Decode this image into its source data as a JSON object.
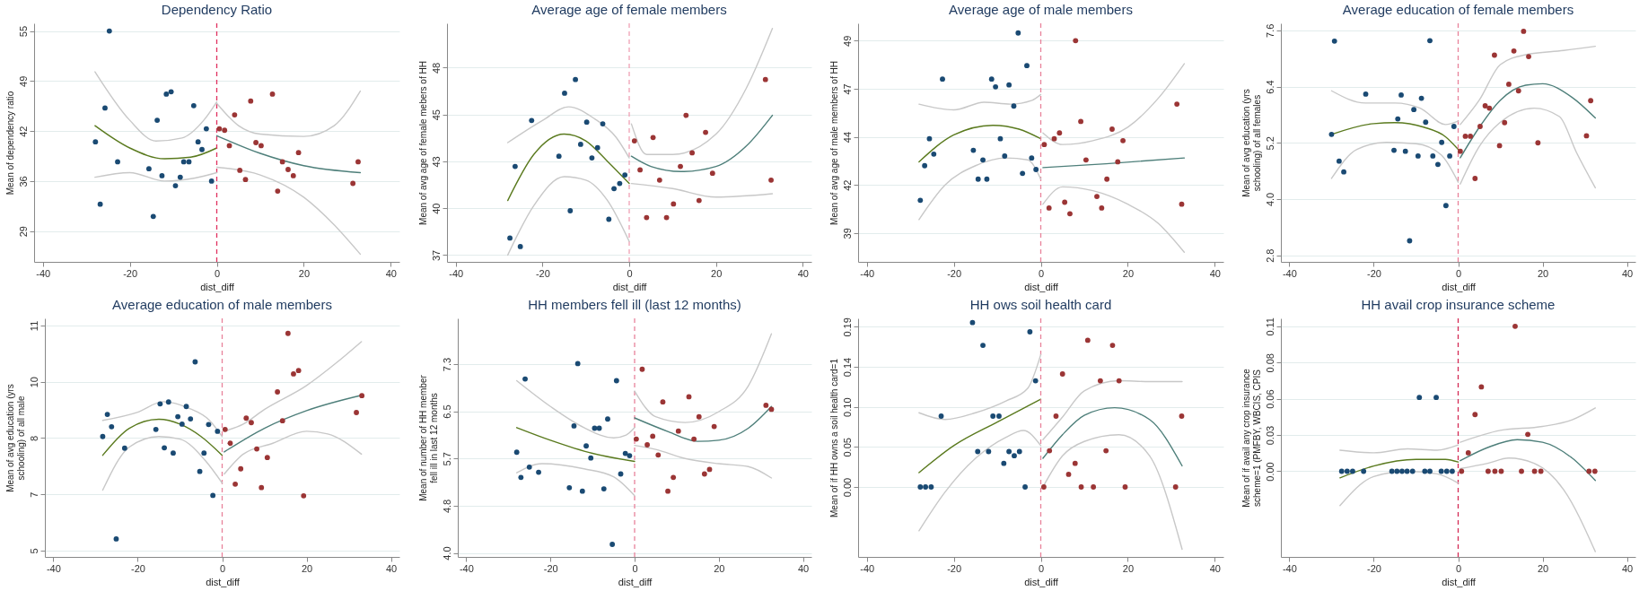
{
  "chart_data": [
    {
      "type": "scatter",
      "title": "Dependency Ratio",
      "xlabel": "dist_diff",
      "ylabel": "Mean of dependency ratio",
      "xlim": [
        -42,
        42
      ],
      "xticks": [
        -40,
        -20,
        0,
        20,
        40
      ],
      "ylim": [
        25,
        56
      ],
      "yticks": [
        29,
        {
          "value": 35.5,
          "label": "36"
        },
        42,
        {
          "value": 48.5,
          "label": "49"
        },
        55
      ],
      "grid": "y",
      "ref_lines": [
        {
          "axis": "x",
          "value": 0,
          "color": "#e0305f",
          "line_style": "dashed"
        }
      ],
      "series": [
        {
          "type": "scatter",
          "marker": "circle",
          "color": "#1a4a73",
          "x": [
            -27.9,
            -26.8,
            -25.7,
            -24.7,
            -22.8,
            -15.6,
            -14.6,
            -13.7,
            -12.6,
            -11.6,
            -10.5,
            -9.5,
            -8.4,
            -7.6,
            -6.4,
            -5.3,
            -4.3,
            -3.4,
            -2.4,
            -1.2
          ],
          "values": [
            40.6,
            32.5,
            45.0,
            55,
            38.0,
            37.1,
            30.9,
            43.4,
            36.2,
            46.8,
            47.1,
            34.9,
            36.0,
            38.0,
            38.0,
            45.3,
            40.6,
            39.6,
            42.3,
            35.5
          ]
        },
        {
          "type": "scatter",
          "marker": "circle",
          "color": "#9b3535",
          "x": [
            0.6,
            1.8,
            2.9,
            4.1,
            5.3,
            6.6,
            7.8,
            9.0,
            10.2,
            12.8,
            14.0,
            15.1,
            16.4,
            17.6,
            18.8,
            31.3,
            32.5
          ],
          "values": [
            42.3,
            42.1,
            40.1,
            44.1,
            36.9,
            35.7,
            45.9,
            40.5,
            40.1,
            46.8,
            34.2,
            38.0,
            37.0,
            36.2,
            39.2,
            35.2,
            38.0
          ]
        },
        {
          "type": "line",
          "color": "#5a7a1e",
          "x": [
            -28,
            -20,
            -12,
            -6,
            0
          ],
          "values": [
            42.7,
            39.8,
            38.4,
            38.6,
            39.8
          ]
        },
        {
          "type": "line",
          "color": "#c8c8c8",
          "x": [
            -28,
            -20,
            -14,
            -8,
            -3,
            0
          ],
          "values": [
            49.7,
            43.4,
            40.7,
            41.1,
            43.4,
            45.8
          ]
        },
        {
          "type": "line",
          "color": "#c8c8c8",
          "x": [
            -28,
            -20,
            -12,
            -5,
            0
          ],
          "values": [
            36.0,
            36.6,
            35.5,
            35.9,
            36.6
          ]
        },
        {
          "type": "line",
          "color": "#4e7f7a",
          "x": [
            0,
            10,
            20,
            33
          ],
          "values": [
            41.4,
            39.1,
            37.5,
            36.6
          ]
        },
        {
          "type": "line",
          "color": "#c8c8c8",
          "x": [
            0,
            5,
            10,
            20,
            27,
            33
          ],
          "values": [
            45.6,
            42.7,
            41.6,
            41.3,
            42.7,
            47.2
          ]
        },
        {
          "type": "line",
          "color": "#c8c8c8",
          "x": [
            0,
            10,
            20,
            27,
            33
          ],
          "values": [
            37.3,
            36.3,
            33.4,
            29.8,
            26.0
          ]
        }
      ]
    },
    {
      "type": "scatter",
      "title": "Average age of female members",
      "xlabel": "dist_diff",
      "ylabel": "Mean of avg  age of female mebers of HH",
      "xlim": [
        -42,
        42
      ],
      "xticks": [
        -40,
        -20,
        0,
        20,
        40
      ],
      "ylim": [
        36.6,
        50.6
      ],
      "yticks": [
        37,
        {
          "value": 39.75,
          "label": "40"
        },
        {
          "value": 42.5,
          "label": "43"
        },
        {
          "value": 45.25,
          "label": "45"
        },
        48
      ],
      "grid": "y",
      "ref_lines": [
        {
          "axis": "x",
          "value": 0,
          "color": "#f0a0b4",
          "line_style": "dashed"
        }
      ],
      "series": [
        {
          "type": "scatter",
          "marker": "circle",
          "color": "#1a4a73",
          "x": [
            -27.5,
            -26.3,
            -25.1,
            -22.5,
            -16.2,
            -14.9,
            -13.6,
            -12.4,
            -11.2,
            -9.8,
            -8.6,
            -7.3,
            -6.1,
            -4.7,
            -3.5,
            -2.2,
            -1.0
          ],
          "values": [
            38.0,
            42.2,
            37.5,
            44.9,
            42.8,
            46.5,
            39.6,
            47.3,
            43.5,
            44.8,
            42.7,
            43.3,
            44.7,
            39.1,
            40.9,
            41.2,
            41.7
          ]
        },
        {
          "type": "scatter",
          "marker": "circle",
          "color": "#9b3535",
          "x": [
            1.2,
            2.5,
            4.0,
            5.5,
            7.0,
            8.6,
            10.2,
            11.8,
            13.1,
            14.5,
            16.1,
            17.6,
            19.2,
            31.4,
            32.7
          ],
          "values": [
            43.7,
            42.0,
            39.2,
            43.9,
            41.4,
            39.2,
            40.0,
            42.2,
            45.2,
            43.0,
            40.2,
            44.2,
            41.8,
            47.3,
            41.4
          ]
        },
        {
          "type": "line",
          "color": "#5a7a1e",
          "x": [
            -28,
            -22,
            -15,
            -10,
            -5,
            0
          ],
          "values": [
            40.2,
            42.9,
            44.1,
            43.7,
            42.5,
            41.2
          ]
        },
        {
          "type": "line",
          "color": "#c8c8c8",
          "x": [
            -28,
            -20,
            -14,
            -8,
            -3,
            0
          ],
          "values": [
            43.6,
            44.9,
            45.7,
            45.0,
            43.9,
            42.7
          ]
        },
        {
          "type": "line",
          "color": "#c8c8c8",
          "x": [
            -28,
            -22,
            -15,
            -10,
            -5,
            0
          ],
          "values": [
            37.0,
            39.9,
            41.6,
            41.4,
            40.2,
            37.8
          ]
        },
        {
          "type": "line",
          "color": "#4e7f7a",
          "x": [
            0.5,
            5,
            12,
            20,
            27,
            33
          ],
          "values": [
            42.8,
            42.2,
            41.9,
            42.2,
            43.4,
            45.2
          ]
        },
        {
          "type": "line",
          "color": "#c8c8c8",
          "x": [
            0.5,
            4,
            10,
            20,
            27,
            33
          ],
          "values": [
            44.7,
            42.9,
            42.9,
            44.1,
            46.8,
            50.3
          ]
        },
        {
          "type": "line",
          "color": "#c8c8c8",
          "x": [
            0.5,
            10,
            20,
            33
          ],
          "values": [
            41.2,
            40.9,
            40.4,
            40.6
          ]
        }
      ]
    },
    {
      "type": "scatter",
      "title": "Average age of male members",
      "xlabel": "dist_diff",
      "ylabel": "Mean of avg age of male members of HH",
      "xlim": [
        -42,
        42
      ],
      "xticks": [
        -40,
        -20,
        0,
        20,
        40
      ],
      "ylim": [
        37.5,
        49.9
      ],
      "yticks": [
        39,
        {
          "value": 41.5,
          "label": "42"
        },
        44,
        {
          "value": 46.5,
          "label": "47"
        },
        49
      ],
      "grid": "y",
      "ref_lines": [
        {
          "axis": "x",
          "value": 0,
          "color": "#e8829a",
          "line_style": "dashed"
        }
      ],
      "series": [
        {
          "type": "scatter",
          "marker": "circle",
          "color": "#1a4a73",
          "x": [
            -27.7,
            -26.7,
            -25.6,
            -24.6,
            -22.6,
            -15.5,
            -14.4,
            -13.3,
            -12.4,
            -11.3,
            -10.4,
            -9.3,
            -8.3,
            -7.3,
            -6.2,
            -5.2,
            -4.2,
            -3.2,
            -2.1,
            -1.1
          ],
          "values": [
            40.7,
            42.5,
            43.9,
            43.1,
            47.0,
            43.3,
            41.8,
            42.8,
            41.8,
            47.0,
            46.6,
            43.9,
            43.0,
            46.7,
            45.6,
            49.4,
            42.1,
            47.7,
            42.9,
            42.3
          ]
        },
        {
          "type": "scatter",
          "marker": "circle",
          "color": "#9b3535",
          "x": [
            0.8,
            1.9,
            3.1,
            4.3,
            5.5,
            6.7,
            8.0,
            9.2,
            10.4,
            12.9,
            14.0,
            15.2,
            16.4,
            17.7,
            18.9,
            31.3,
            32.4
          ],
          "values": [
            43.6,
            40.3,
            43.9,
            44.2,
            40.6,
            40.0,
            49.0,
            44.8,
            42.8,
            40.9,
            40.3,
            41.8,
            44.4,
            42.7,
            43.8,
            45.7,
            40.5
          ]
        },
        {
          "type": "line",
          "color": "#5a7a1e",
          "x": [
            -28,
            -20,
            -11,
            -5,
            0
          ],
          "values": [
            42.7,
            44.1,
            44.6,
            44.4,
            43.9
          ]
        },
        {
          "type": "line",
          "color": "#c8c8c8",
          "x": [
            -28,
            -20,
            -13,
            -7,
            -2,
            0
          ],
          "values": [
            45.7,
            45.4,
            45.8,
            45.7,
            45.9,
            46.2
          ]
        },
        {
          "type": "line",
          "color": "#c8c8c8",
          "x": [
            -28,
            -22,
            -15,
            -8,
            -3,
            0
          ],
          "values": [
            39.7,
            41.5,
            42.5,
            42.9,
            42.8,
            41.8
          ]
        },
        {
          "type": "line",
          "color": "#4e7f7a",
          "x": [
            0.5,
            15,
            33
          ],
          "values": [
            42.4,
            42.6,
            42.9
          ]
        },
        {
          "type": "line",
          "color": "#c8c8c8",
          "x": [
            0.5,
            5,
            12,
            20,
            27,
            33
          ],
          "values": [
            44.2,
            43.6,
            43.8,
            44.5,
            46.0,
            47.8
          ]
        },
        {
          "type": "line",
          "color": "#c8c8c8",
          "x": [
            0.5,
            5,
            12,
            20,
            27,
            33
          ],
          "values": [
            40.5,
            41.4,
            41.2,
            40.5,
            39.5,
            38.0
          ]
        }
      ]
    },
    {
      "type": "scatter",
      "title": "Average education of female members",
      "xlabel": "dist_diff",
      "ylabel": "Mean of avg education (yrs schooling) of all females",
      "xlim": [
        -42,
        42
      ],
      "xticks": [
        -40,
        -20,
        0,
        20,
        40
      ],
      "ylim": [
        2.66,
        7.75
      ],
      "yticks": [
        2.8,
        {
          "value": 4,
          "label": "4.0"
        },
        5.2,
        6.4,
        7.6
      ],
      "grid": "y",
      "ref_lines": [
        {
          "axis": "x",
          "value": 0,
          "color": "#e8829a",
          "line_style": "dashed"
        }
      ],
      "series": [
        {
          "type": "scatter",
          "marker": "circle",
          "color": "#1a4a73",
          "x": [
            -29.3,
            -30.0,
            -28.2,
            -27.1,
            -21.9,
            -15.2,
            -14.3,
            -13.5,
            -12.5,
            -11.5,
            -10.5,
            -9.5,
            -8.7,
            -7.7,
            -6.7,
            -6.0,
            -4.8,
            -3.9,
            -2.9,
            -2.0,
            -1.0
          ],
          "values": [
            7.37,
            5.38,
            4.81,
            4.58,
            6.24,
            5.04,
            5.71,
            6.22,
            5.02,
            3.11,
            5.91,
            4.92,
            6.15,
            5.64,
            7.38,
            4.92,
            4.74,
            5.21,
            3.86,
            4.92,
            5.55
          ]
        },
        {
          "type": "scatter",
          "marker": "circle",
          "color": "#9b3535",
          "x": [
            0.5,
            1.7,
            2.9,
            4.0,
            5.2,
            6.4,
            7.4,
            8.6,
            9.8,
            11.0,
            12.0,
            13.2,
            14.3,
            15.5,
            16.7,
            18.9,
            30.4,
            31.4
          ],
          "values": [
            5.02,
            5.34,
            5.34,
            4.44,
            5.55,
            5.99,
            5.94,
            7.07,
            5.14,
            5.63,
            6.45,
            7.16,
            6.31,
            7.58,
            7.04,
            5.2,
            5.35,
            6.1
          ]
        },
        {
          "type": "line",
          "color": "#5a7a1e",
          "x": [
            -30,
            -20,
            -15,
            -8,
            -3,
            0
          ],
          "values": [
            5.38,
            5.61,
            5.63,
            5.53,
            5.33,
            5.06
          ]
        },
        {
          "type": "line",
          "color": "#c8c8c8",
          "x": [
            -30,
            -22,
            -15,
            -9,
            -3,
            0
          ],
          "values": [
            6.31,
            6.05,
            6.05,
            5.94,
            5.59,
            5.66
          ]
        },
        {
          "type": "line",
          "color": "#c8c8c8",
          "x": [
            -30,
            -24,
            -17,
            -10,
            -4,
            0
          ],
          "values": [
            4.44,
            5.06,
            5.21,
            5.18,
            4.94,
            4.36
          ]
        },
        {
          "type": "line",
          "color": "#4e7f7a",
          "x": [
            0.5,
            5,
            10,
            16,
            20,
            27,
            32.5
          ],
          "values": [
            4.88,
            5.53,
            6.11,
            6.43,
            6.46,
            6.17,
            5.73
          ]
        },
        {
          "type": "line",
          "color": "#c8c8c8",
          "x": [
            0.5,
            5,
            10,
            16,
            25,
            32.5
          ],
          "values": [
            5.59,
            6.11,
            6.87,
            7.08,
            7.17,
            7.26
          ]
        },
        {
          "type": "line",
          "color": "#c8c8c8",
          "x": [
            0.5,
            5,
            10,
            18,
            24,
            28,
            32.5
          ],
          "values": [
            4.32,
            5.12,
            5.64,
            5.94,
            5.76,
            5.0,
            4.24
          ]
        }
      ]
    },
    {
      "type": "scatter",
      "title": "Average education of male members",
      "xlabel": "dist_diff",
      "ylabel": "Mean of avg education (yrs schooling) of all male",
      "xlim": [
        -42,
        42
      ],
      "xticks": [
        -40,
        -20,
        0,
        20,
        40
      ],
      "ylim": [
        4.83,
        11.19
      ],
      "yticks": [
        5,
        {
          "value": 6.5,
          "label": "7"
        },
        8,
        {
          "value": 9.5,
          "label": "10"
        },
        11
      ],
      "grid": "y",
      "ref_lines": [
        {
          "axis": "x",
          "value": 0,
          "color": "#e8829a",
          "line_style": "dashed"
        }
      ],
      "series": [
        {
          "type": "scatter",
          "marker": "circle",
          "color": "#1a4a73",
          "x": [
            -28.3,
            -27.2,
            -26.2,
            -25.1,
            -23.1,
            -15.7,
            -14.7,
            -13.7,
            -12.7,
            -11.6,
            -10.5,
            -9.5,
            -8.5,
            -7.5,
            -6.4,
            -5.3,
            -4.3,
            -3.2,
            -2.2,
            -1.1
          ],
          "values": [
            8.04,
            8.63,
            8.3,
            5.31,
            7.73,
            8.23,
            8.91,
            7.74,
            8.96,
            7.6,
            8.57,
            8.37,
            8.84,
            8.51,
            10.03,
            7.11,
            7.6,
            8.36,
            6.47,
            8.18
          ]
        },
        {
          "type": "scatter",
          "marker": "circle",
          "color": "#9b3535",
          "x": [
            0.7,
            1.9,
            3.1,
            4.4,
            5.7,
            6.9,
            8.2,
            9.3,
            10.7,
            13.1,
            14.3,
            15.6,
            16.9,
            18.1,
            19.3,
            31.8,
            33.1
          ],
          "values": [
            8.23,
            7.86,
            6.77,
            7.18,
            8.53,
            8.41,
            7.71,
            6.68,
            7.48,
            9.23,
            8.46,
            10.79,
            9.71,
            9.8,
            6.46,
            8.68,
            9.13
          ]
        },
        {
          "type": "line",
          "color": "#5a7a1e",
          "x": [
            -28.3,
            -22,
            -15,
            -10,
            -5,
            0
          ],
          "values": [
            7.54,
            8.26,
            8.5,
            8.37,
            8.04,
            7.54
          ]
        },
        {
          "type": "line",
          "color": "#c8c8c8",
          "x": [
            -28.3,
            -20,
            -14,
            -8,
            -3,
            0
          ],
          "values": [
            8.47,
            8.69,
            8.97,
            8.8,
            8.47,
            8.04
          ]
        },
        {
          "type": "line",
          "color": "#c8c8c8",
          "x": [
            -28.3,
            -22,
            -15,
            -10,
            -4,
            0
          ],
          "values": [
            6.61,
            7.76,
            8.04,
            7.97,
            7.4,
            6.8
          ]
        },
        {
          "type": "line",
          "color": "#4e7f7a",
          "x": [
            0.5,
            10,
            20,
            33
          ],
          "values": [
            7.63,
            8.26,
            8.73,
            9.14
          ]
        },
        {
          "type": "line",
          "color": "#c8c8c8",
          "x": [
            0.5,
            5,
            10,
            20,
            27,
            33
          ],
          "values": [
            8.18,
            8.37,
            8.76,
            9.4,
            10.0,
            10.57
          ]
        },
        {
          "type": "line",
          "color": "#c8c8c8",
          "x": [
            0.5,
            5,
            12,
            20,
            25,
            33
          ],
          "values": [
            7.04,
            7.57,
            7.86,
            8.18,
            8.11,
            7.57
          ]
        }
      ]
    },
    {
      "type": "scatter",
      "title": "HH members fell ill (last 12 months)",
      "xlabel": "dist_diff",
      "ylabel": "Mean of number of HH member fell ill in last 12 months",
      "xlim": [
        -42,
        42
      ],
      "xticks": [
        -40,
        -20,
        0,
        20,
        40
      ],
      "ylim": [
        3.93,
        8.1
      ],
      "yticks": [
        {
          "value": 4,
          "label": "4.0"
        },
        {
          "value": 4.825,
          "label": "4.8"
        },
        {
          "value": 5.65,
          "label": "5.7"
        },
        {
          "value": 6.475,
          "label": "6.5"
        },
        7.3
      ],
      "grid": "y",
      "ref_lines": [
        {
          "axis": "x",
          "value": 0,
          "color": "#e8829a",
          "line_style": "dashed"
        }
      ],
      "series": [
        {
          "type": "scatter",
          "marker": "circle",
          "color": "#1a4a73",
          "x": [
            -28.0,
            -27.0,
            -26.0,
            -25.0,
            -22.8,
            -15.5,
            -14.4,
            -13.5,
            -12.4,
            -11.5,
            -10.4,
            -9.5,
            -8.4,
            -7.3,
            -6.4,
            -5.3,
            -4.3,
            -3.3,
            -2.2,
            -1.2
          ],
          "values": [
            5.76,
            5.32,
            7.04,
            5.5,
            5.41,
            5.14,
            6.22,
            7.31,
            5.08,
            5.87,
            5.66,
            6.18,
            6.18,
            5.12,
            6.34,
            4.15,
            7.01,
            5.38,
            5.74,
            5.7
          ]
        },
        {
          "type": "scatter",
          "marker": "circle",
          "color": "#9b3535",
          "x": [
            0.4,
            1.8,
            3.0,
            4.3,
            5.6,
            6.7,
            7.9,
            9.2,
            10.4,
            12.9,
            14.1,
            15.3,
            16.6,
            17.8,
            18.9,
            31.2,
            32.5
          ],
          "values": [
            5.99,
            7.21,
            5.89,
            6.04,
            5.71,
            6.64,
            5.08,
            5.32,
            6.13,
            6.73,
            5.99,
            6.38,
            5.38,
            5.46,
            6.21,
            6.58,
            6.51
          ]
        },
        {
          "type": "line",
          "color": "#5a7a1e",
          "x": [
            -28,
            -20,
            -10,
            0
          ],
          "values": [
            6.19,
            5.97,
            5.74,
            5.6
          ]
        },
        {
          "type": "line",
          "color": "#c8c8c8",
          "x": [
            -28,
            -20,
            -12,
            -5,
            -2,
            0
          ],
          "values": [
            7.01,
            6.56,
            6.19,
            6.01,
            6.06,
            6.19
          ]
        },
        {
          "type": "line",
          "color": "#c8c8c8",
          "x": [
            -28,
            -22,
            -12,
            -5,
            0
          ],
          "values": [
            5.4,
            5.56,
            5.47,
            5.33,
            5.0
          ]
        },
        {
          "type": "line",
          "color": "#4e7f7a",
          "x": [
            0,
            8,
            15,
            20,
            27,
            32.5
          ],
          "values": [
            6.36,
            6.12,
            5.95,
            5.97,
            6.18,
            6.56
          ]
        },
        {
          "type": "line",
          "color": "#c8c8c8",
          "x": [
            0,
            5,
            12,
            20,
            27,
            32.5
          ],
          "values": [
            6.83,
            6.38,
            6.28,
            6.47,
            6.92,
            7.83
          ]
        },
        {
          "type": "line",
          "color": "#c8c8c8",
          "x": [
            0,
            5,
            12,
            20,
            27,
            32.5
          ],
          "values": [
            5.88,
            5.81,
            5.65,
            5.56,
            5.51,
            5.31
          ]
        }
      ]
    },
    {
      "type": "scatter",
      "title": "HH ows soil health card",
      "xlabel": "dist_diff",
      "ylabel": "Mean of if HH owns a soil health card=1",
      "xlim": [
        -42,
        42
      ],
      "xticks": [
        -40,
        -20,
        0,
        20,
        40
      ],
      "ylim": [
        -0.083,
        0.2
      ],
      "yticks": [
        {
          "value": 0,
          "label": "0.00"
        },
        {
          "value": 0.0475,
          "label": "0.05"
        },
        {
          "value": 0.095,
          "label": "0.10"
        },
        {
          "value": 0.1425,
          "label": "0.14"
        },
        0.19
      ],
      "grid": "y",
      "ref_lines": [
        {
          "axis": "x",
          "value": 0,
          "color": "#e8829a",
          "line_style": "dashed"
        }
      ],
      "series": [
        {
          "type": "scatter",
          "marker": "circle",
          "color": "#1a4a73",
          "x": [
            -27.7,
            -26.5,
            -25.2,
            -22.9,
            -15.7,
            -14.5,
            -13.3,
            -12.0,
            -11.0,
            -9.6,
            -8.5,
            -7.3,
            -6.1,
            -4.9,
            -3.6,
            -2.5,
            -1.2
          ],
          "values": [
            0,
            0,
            0,
            0.084,
            0.195,
            0.042,
            0.168,
            0.042,
            0.084,
            0.084,
            0.028,
            0.042,
            0.037,
            0.042,
            0,
            0.184,
            0.126
          ]
        },
        {
          "type": "scatter",
          "marker": "circle",
          "color": "#9b3535",
          "x": [
            0.7,
            2.0,
            3.5,
            5.0,
            6.4,
            7.9,
            9.3,
            10.8,
            12.1,
            13.7,
            15.0,
            16.5,
            18.0,
            19.4,
            31.0,
            32.4
          ],
          "values": [
            0,
            0.043,
            0.084,
            0.134,
            0.015,
            0.028,
            0,
            0.174,
            0,
            0.126,
            0.043,
            0.168,
            0.126,
            0,
            0,
            0.084
          ]
        },
        {
          "type": "line",
          "color": "#5a7a1e",
          "x": [
            -28,
            -20,
            -10,
            0
          ],
          "values": [
            0.017,
            0.049,
            0.077,
            0.104
          ]
        },
        {
          "type": "line",
          "color": "#c8c8c8",
          "x": [
            -28,
            -22,
            -15,
            -8,
            -3,
            0
          ],
          "values": [
            0.088,
            0.08,
            0.088,
            0.102,
            0.117,
            0.157
          ]
        },
        {
          "type": "line",
          "color": "#c8c8c8",
          "x": [
            -28,
            -22,
            -15,
            -8,
            -4,
            0
          ],
          "values": [
            -0.052,
            -0.006,
            0.034,
            0.059,
            0.067,
            0.049
          ]
        },
        {
          "type": "line",
          "color": "#4e7f7a",
          "x": [
            0.5,
            5,
            10,
            17,
            25,
            32.5
          ],
          "values": [
            0.034,
            0.062,
            0.085,
            0.094,
            0.08,
            0.025
          ]
        },
        {
          "type": "line",
          "color": "#c8c8c8",
          "x": [
            0.5,
            5,
            10,
            18,
            25,
            32.5
          ],
          "values": [
            0.056,
            0.083,
            0.114,
            0.126,
            0.125,
            0.125
          ]
        },
        {
          "type": "line",
          "color": "#c8c8c8",
          "x": [
            0.5,
            5,
            10,
            18,
            25,
            32.5
          ],
          "values": [
            0,
            0.037,
            0.054,
            0.062,
            0.037,
            -0.074
          ]
        }
      ]
    },
    {
      "type": "scatter",
      "title": "HH avail crop insurance scheme",
      "xlabel": "dist_diff",
      "ylabel": "Mean of if avail any  crop insurance scheme=1  (PMFBY, WBCIS, CPIS",
      "xlim": [
        -42,
        42
      ],
      "xticks": [
        -40,
        -20,
        0,
        20,
        40
      ],
      "ylim": [
        -0.065,
        0.116
      ],
      "yticks": [
        {
          "value": 0,
          "label": "0.00"
        },
        {
          "value": 0.0275,
          "label": "0.03"
        },
        {
          "value": 0.055,
          "label": "0.06"
        },
        {
          "value": 0.0825,
          "label": "0.08"
        },
        0.11
      ],
      "grid": "y",
      "ref_lines": [
        {
          "axis": "x",
          "value": 0,
          "color": "#d42a55",
          "line_style": "dashed"
        }
      ],
      "series": [
        {
          "type": "scatter",
          "marker": "circle",
          "color": "#1a4a73",
          "x": [
            -27.6,
            -26.3,
            -25.0,
            -22.4,
            -15.7,
            -14.5,
            -13.3,
            -12.1,
            -10.8,
            -9.2,
            -7.9,
            -6.7,
            -5.2,
            -4.0,
            -2.7,
            -1.4
          ],
          "values": [
            0,
            0,
            0,
            0,
            0,
            0,
            0,
            0,
            0,
            0.056,
            0,
            0,
            0.056,
            0,
            0,
            0
          ]
        },
        {
          "type": "scatter",
          "marker": "circle",
          "color": "#9b3535",
          "x": [
            0.8,
            2.4,
            4.0,
            5.5,
            7.1,
            8.7,
            10.2,
            13.5,
            15.0,
            16.5,
            18.1,
            19.6,
            31.0,
            32.4
          ],
          "values": [
            0,
            0.014,
            0.043,
            0.064,
            0,
            0,
            0,
            0.11,
            0,
            0.028,
            0,
            0,
            0,
            0
          ]
        },
        {
          "type": "line",
          "color": "#5a7a1e",
          "x": [
            -28,
            -20,
            -10,
            -3,
            0
          ],
          "values": [
            -0.005,
            0.004,
            0.009,
            0.009,
            0.007
          ]
        },
        {
          "type": "line",
          "color": "#c8c8c8",
          "x": [
            -28,
            -20,
            -12,
            -5,
            0
          ],
          "values": [
            0.016,
            0.014,
            0.017,
            0.016,
            0.02
          ]
        },
        {
          "type": "line",
          "color": "#c8c8c8",
          "x": [
            -28,
            -20,
            -12,
            -5,
            0
          ],
          "values": [
            -0.026,
            -0.004,
            0,
            -0.002,
            -0.009
          ]
        },
        {
          "type": "line",
          "color": "#4e7f7a",
          "x": [
            0.5,
            7,
            14,
            20,
            27,
            32.5
          ],
          "values": [
            0.008,
            0.018,
            0.024,
            0.022,
            0.01,
            -0.007
          ]
        },
        {
          "type": "line",
          "color": "#c8c8c8",
          "x": [
            0.5,
            10,
            20,
            27,
            32.5
          ],
          "values": [
            0.022,
            0.031,
            0.034,
            0.039,
            0.048
          ]
        },
        {
          "type": "line",
          "color": "#c8c8c8",
          "x": [
            0.5,
            7,
            12,
            18,
            25,
            32.5
          ],
          "values": [
            0.002,
            0.006,
            0.01,
            0.006,
            -0.014,
            -0.061
          ]
        }
      ]
    }
  ]
}
